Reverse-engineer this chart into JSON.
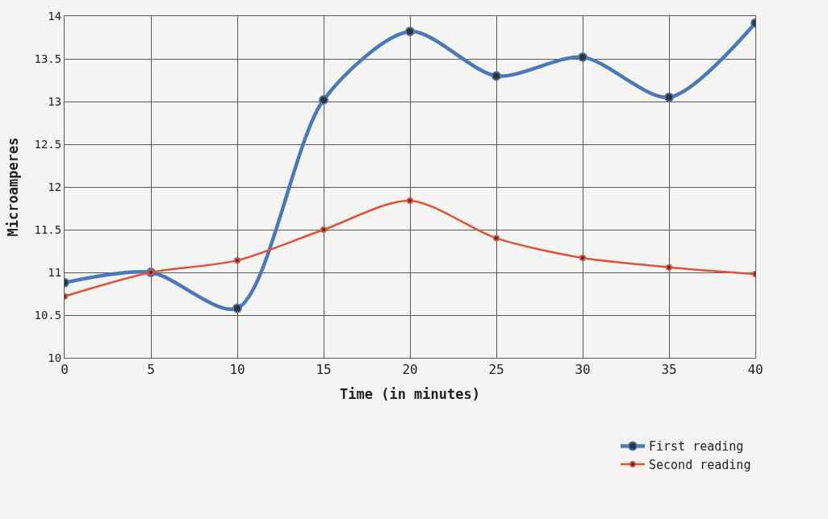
{
  "chart_data": {
    "type": "line",
    "xlabel": "Time (in minutes)",
    "ylabel": "Microamperes",
    "x": [
      0,
      5,
      10,
      15,
      20,
      25,
      30,
      35,
      40
    ],
    "series": [
      {
        "name": "First reading",
        "color": "#4a78b8",
        "values": [
          10.88,
          11.0,
          10.58,
          13.02,
          13.82,
          13.3,
          13.52,
          13.05,
          13.92
        ]
      },
      {
        "name": "Second reading",
        "color": "#e0503a",
        "values": [
          10.72,
          11.0,
          11.14,
          11.5,
          11.84,
          11.4,
          11.17,
          11.06,
          10.98
        ]
      }
    ],
    "xlim": [
      0,
      40
    ],
    "xticks": [
      0,
      5,
      10,
      15,
      20,
      25,
      30,
      35,
      40
    ],
    "ylim": [
      10,
      14
    ],
    "yticks": [
      10,
      10.5,
      11,
      11.5,
      12,
      12.5,
      13,
      13.5,
      14
    ],
    "grid": true,
    "legend": "bottom right",
    "marker": "circle",
    "line_style": "solid"
  }
}
